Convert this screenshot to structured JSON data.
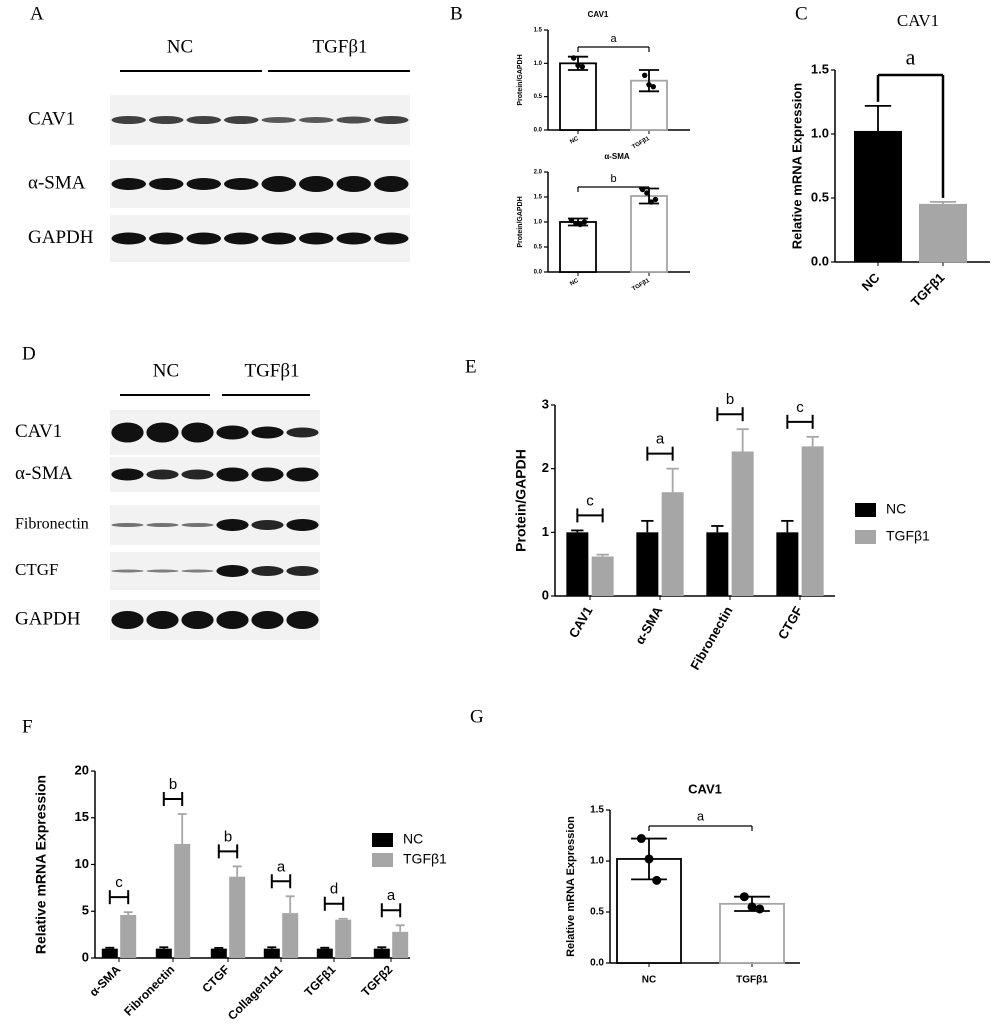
{
  "panels": [
    "A",
    "B",
    "C",
    "D",
    "E",
    "F",
    "G"
  ],
  "blot_A": {
    "groups": [
      "NC",
      "TGFβ1"
    ],
    "rows": [
      "CAV1",
      "α-SMA",
      "GAPDH"
    ]
  },
  "blot_D": {
    "groups": [
      "NC",
      "TGFβ1"
    ],
    "rows": [
      "CAV1",
      "α-SMA",
      "Fibronectin",
      "CTGF",
      "GAPDH"
    ]
  },
  "chart_data": [
    {
      "type": "bar",
      "title": "CAV1",
      "y_label": "Protein/GAPDH",
      "categories": [
        "NC",
        "TGFβ1"
      ],
      "values": [
        1.0,
        0.74
      ],
      "errors": [
        0.1,
        0.16
      ],
      "error_bars": "both",
      "bar_style": "outline",
      "colors": [
        "#000000",
        "#a6a6a6"
      ],
      "points": [
        [
          1.08,
          0.97,
          0.95
        ],
        [
          0.82,
          0.68,
          0.65
        ]
      ],
      "annotation": "a",
      "ylim": [
        0,
        1.5
      ],
      "yticks": [
        {
          "value": 0,
          "label": "0.0"
        },
        0.5,
        {
          "value": 1,
          "label": "1.0"
        },
        1.5
      ]
    },
    {
      "type": "bar",
      "title": "α-SMA",
      "y_label": "Protein/GAPDH",
      "categories": [
        "NC",
        "TGFβ1"
      ],
      "values": [
        1.0,
        1.52
      ],
      "errors": [
        0.07,
        0.15
      ],
      "error_bars": "both",
      "bar_style": "outline",
      "colors": [
        "#000000",
        "#a6a6a6"
      ],
      "points": [
        [
          1.03,
          0.97,
          0.95,
          1.0
        ],
        [
          1.65,
          1.58,
          1.4,
          1.45
        ]
      ],
      "annotation": "b",
      "ylim": [
        0,
        2
      ],
      "yticks": [
        {
          "value": 0,
          "label": "0.0"
        },
        0.5,
        {
          "value": 1,
          "label": "1.0"
        },
        1.5,
        {
          "value": 2,
          "label": "2.0"
        }
      ]
    },
    {
      "type": "bar",
      "title": "CAV1",
      "y_label": "Relative mRNA Expression",
      "categories": [
        "NC",
        "TGFβ1"
      ],
      "values": [
        1.02,
        0.45
      ],
      "errors": [
        0.2,
        0.02
      ],
      "error_bars": "up",
      "bar_style": "filled",
      "colors": [
        "#000000",
        "#a6a6a6"
      ],
      "annotation": "a",
      "ylim": [
        0,
        1.5
      ],
      "yticks": [
        {
          "value": 0,
          "label": "0.0"
        },
        0.5,
        {
          "value": 1,
          "label": "1.0"
        },
        1.5
      ]
    },
    {
      "type": "grouped_bar",
      "y_label": "Protein/GAPDH",
      "categories": [
        "CAV1",
        "α-SMA",
        "Fibronectin",
        "CTGF"
      ],
      "series": [
        {
          "name": "NC",
          "color": "#000000",
          "values": [
            1.0,
            1.0,
            1.0,
            1.0
          ],
          "errors": [
            0.03,
            0.18,
            0.1,
            0.18
          ]
        },
        {
          "name": "TGFβ1",
          "color": "#a6a6a6",
          "values": [
            0.62,
            1.63,
            2.27,
            2.35
          ],
          "errors": [
            0.03,
            0.37,
            0.35,
            0.15
          ]
        }
      ],
      "annotations": [
        "c",
        "a",
        "b",
        "c"
      ],
      "ylim": [
        0,
        3
      ],
      "yticks": [
        0,
        1,
        2,
        3
      ],
      "legend": "right"
    },
    {
      "type": "grouped_bar",
      "y_label": "Relative mRNA Expression",
      "categories": [
        "α-SMA",
        "Fibronectin",
        "CTGF",
        "Collagen1α1",
        "TGFβ1",
        "TGFβ2"
      ],
      "series": [
        {
          "name": "NC",
          "color": "#000000",
          "values": [
            1.0,
            1.0,
            1.0,
            1.0,
            1.0,
            1.0
          ],
          "errors": [
            0.1,
            0.15,
            0.08,
            0.15,
            0.1,
            0.15
          ]
        },
        {
          "name": "TGFβ1",
          "color": "#a6a6a6",
          "values": [
            4.6,
            12.2,
            8.7,
            4.8,
            4.1,
            2.8
          ],
          "errors": [
            0.3,
            3.2,
            1.1,
            1.8,
            0.1,
            0.7
          ]
        }
      ],
      "annotations": [
        "c",
        "b",
        "b",
        "a",
        "d",
        "a"
      ],
      "ylim": [
        0,
        20
      ],
      "yticks": [
        0,
        5,
        10,
        15,
        20
      ],
      "legend": "right"
    },
    {
      "type": "bar",
      "title": "CAV1",
      "y_label": "Relative mRNA Expression",
      "categories": [
        "NC",
        "TGFβ1"
      ],
      "values": [
        1.02,
        0.58
      ],
      "errors": [
        0.2,
        0.07
      ],
      "error_bars": "both",
      "bar_style": "outline",
      "colors": [
        "#000000",
        "#a6a6a6"
      ],
      "points": [
        [
          1.22,
          1.02,
          0.81
        ],
        [
          0.65,
          0.55,
          0.53
        ]
      ],
      "annotation": "a",
      "ylim": [
        0,
        1.5
      ],
      "yticks": [
        {
          "value": 0,
          "label": "0.0"
        },
        0.5,
        {
          "value": 1,
          "label": "1.0"
        },
        1.5
      ]
    }
  ]
}
